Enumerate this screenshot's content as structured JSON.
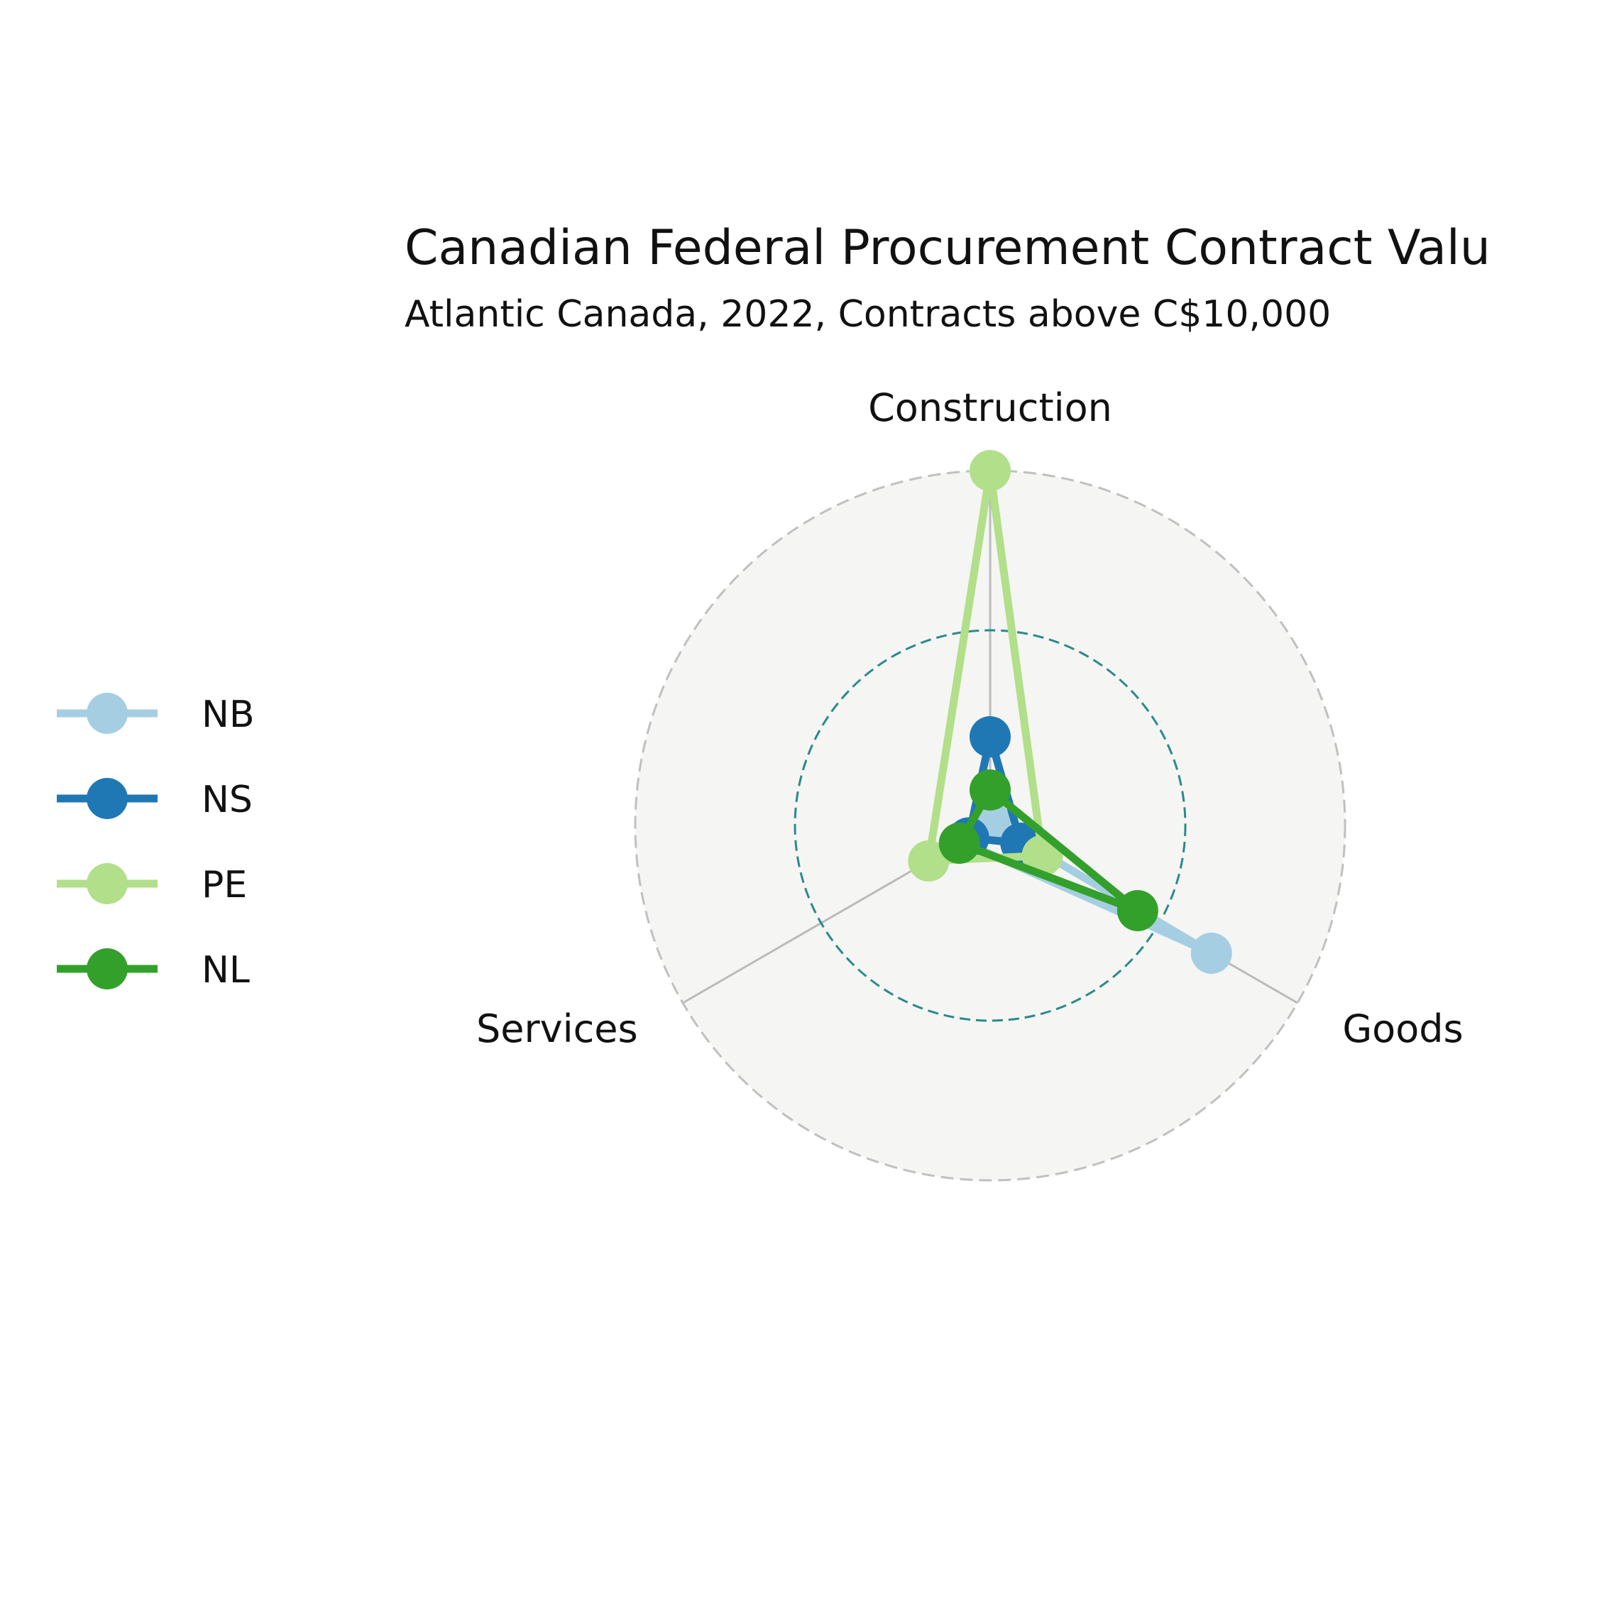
{
  "chart_data": {
    "type": "radar",
    "title": "Canadian Federal Procurement Contract Valu",
    "subtitle": "Atlantic Canada, 2022, Contracts above C$10,000",
    "categories": [
      "Construction",
      "Goods",
      "Services"
    ],
    "rlim": [
      0,
      1
    ],
    "reference_ring": 0.55,
    "grid": true,
    "legend_position": "left",
    "series": [
      {
        "name": "NB",
        "color": "#a6cee3",
        "values": [
          0.01,
          0.72,
          0.09
        ]
      },
      {
        "name": "NS",
        "color": "#1f78b4",
        "values": [
          0.25,
          0.1,
          0.07
        ]
      },
      {
        "name": "PE",
        "color": "#b2df8a",
        "values": [
          1.0,
          0.17,
          0.2
        ]
      },
      {
        "name": "NL",
        "color": "#33a02c",
        "values": [
          0.1,
          0.48,
          0.1
        ]
      }
    ],
    "colors": {
      "background_disc": "#f5f5f3",
      "outer_ring": "#c0c0c0",
      "reference_ring": "#2a8a8a",
      "spokes": "#bbbbbb"
    }
  }
}
